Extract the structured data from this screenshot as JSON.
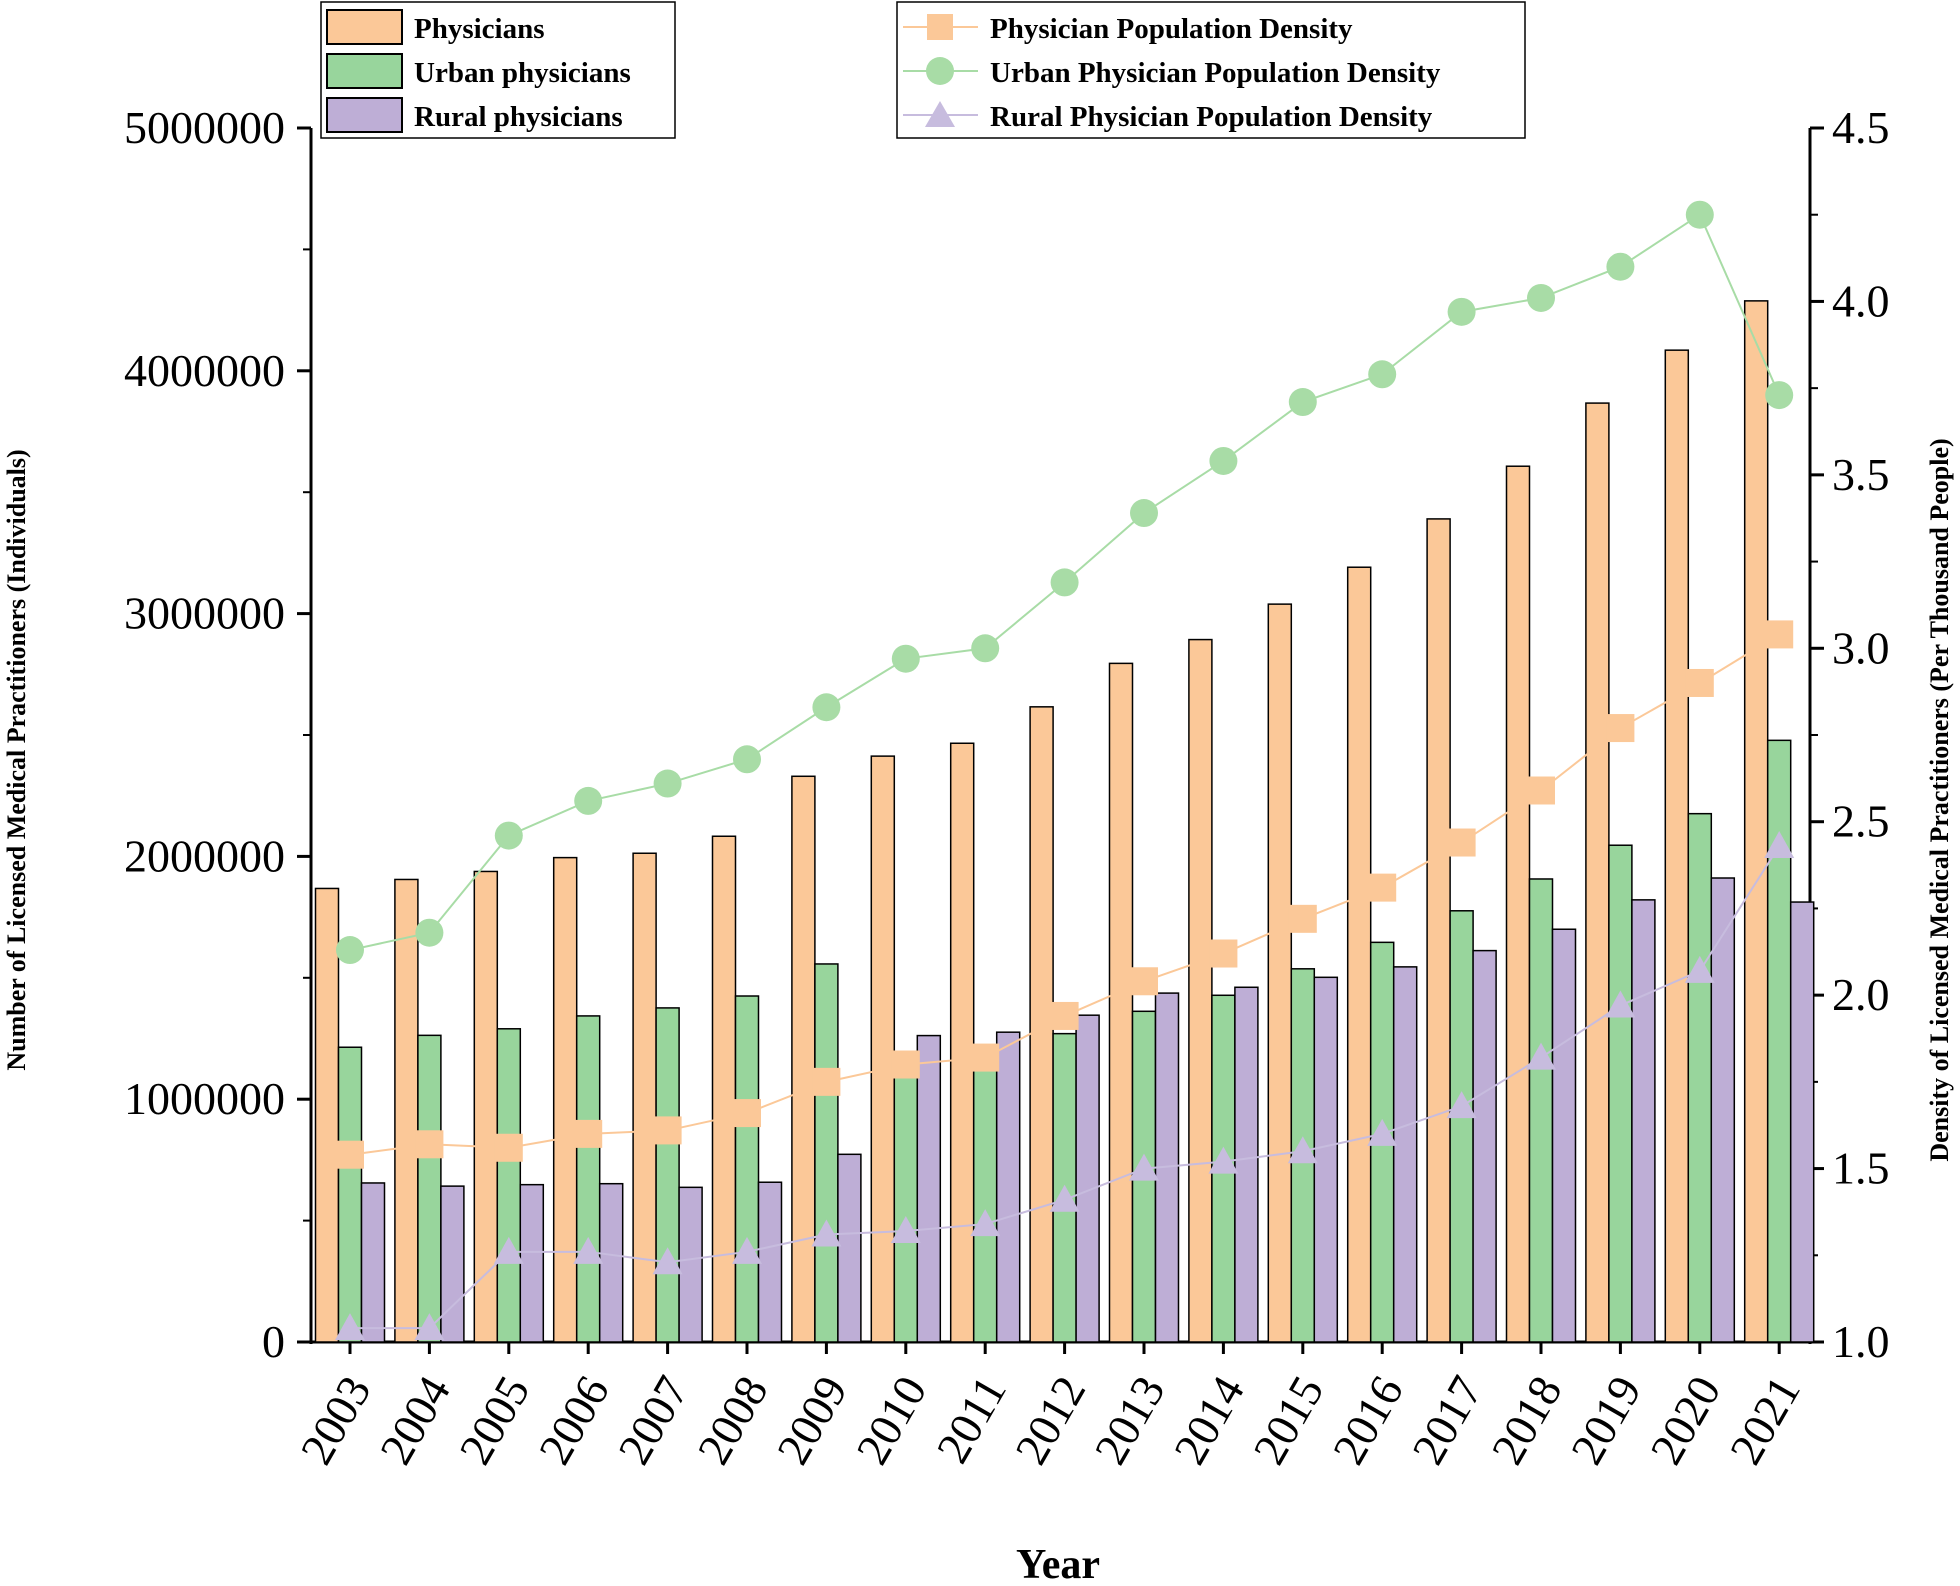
{
  "chart_data": {
    "type": "bar",
    "title": "",
    "categories": [
      "2003",
      "2004",
      "2005",
      "2006",
      "2007",
      "2008",
      "2009",
      "2010",
      "2011",
      "2012",
      "2013",
      "2014",
      "2015",
      "2016",
      "2017",
      "2018",
      "2019",
      "2020",
      "2021"
    ],
    "xlabel": "Year",
    "ylabel": "Number of Licensed Medical Practitioners (Individuals)",
    "y2label": "Density of Licensed Medical Practitioners (Per Thousand People)",
    "ylim": [
      0,
      5000000
    ],
    "y2lim": [
      1.0,
      4.5
    ],
    "yticks": [
      "0",
      "1000000",
      "2000000",
      "3000000",
      "4000000",
      "5000000"
    ],
    "y2ticks": [
      "1.0",
      "1.5",
      "2.0",
      "2.5",
      "3.0",
      "3.5",
      "4.0",
      "4.5"
    ],
    "y2tick_values": [
      1.0,
      1.5,
      2.0,
      2.5,
      3.0,
      3.5,
      4.0,
      4.5
    ],
    "series": [
      {
        "name": "Physicians",
        "kind": "bar",
        "axis": "left",
        "color": "#FBC898",
        "values": [
          1868000,
          1905000,
          1938000,
          1995000,
          2013000,
          2083000,
          2330000,
          2413000,
          2466000,
          2616000,
          2795000,
          2893000,
          3039000,
          3191000,
          3390000,
          3607000,
          3867000,
          4085000,
          4288000
        ]
      },
      {
        "name": "Urban physicians",
        "kind": "bar",
        "axis": "left",
        "color": "#98D59C",
        "values": [
          1214000,
          1263000,
          1290000,
          1343000,
          1376000,
          1425000,
          1557000,
          1140000,
          1150000,
          1270000,
          1362000,
          1428000,
          1537000,
          1646000,
          1776000,
          1907000,
          2046000,
          2176000,
          2478000
        ]
      },
      {
        "name": "Rural physicians",
        "kind": "bar",
        "axis": "left",
        "color": "#BEAED6",
        "values": [
          655000,
          642000,
          648000,
          652000,
          637000,
          658000,
          773000,
          1262000,
          1276000,
          1346000,
          1437000,
          1461000,
          1502000,
          1545000,
          1612000,
          1700000,
          1821000,
          1911000,
          1812000
        ]
      },
      {
        "name": "Physician Population Density",
        "kind": "line",
        "axis": "right",
        "marker": "square",
        "color": "#FBC898",
        "values": [
          1.54,
          1.57,
          1.56,
          1.6,
          1.61,
          1.66,
          1.75,
          1.8,
          1.82,
          1.94,
          2.04,
          2.12,
          2.22,
          2.31,
          2.44,
          2.59,
          2.77,
          2.9,
          3.04
        ]
      },
      {
        "name": "Urban Physician Population Density",
        "kind": "line",
        "axis": "right",
        "marker": "circle",
        "color": "#A8DCA6",
        "values": [
          2.13,
          2.18,
          2.46,
          2.56,
          2.61,
          2.68,
          2.83,
          2.97,
          3.0,
          3.19,
          3.39,
          3.54,
          3.71,
          3.79,
          3.97,
          4.01,
          4.1,
          4.25,
          3.73
        ]
      },
      {
        "name": "Rural Physician Population Density",
        "kind": "line",
        "axis": "right",
        "marker": "triangle",
        "color": "#C7BCDE",
        "values": [
          1.04,
          1.04,
          1.26,
          1.26,
          1.23,
          1.26,
          1.31,
          1.32,
          1.34,
          1.41,
          1.5,
          1.52,
          1.55,
          1.6,
          1.68,
          1.82,
          1.97,
          2.07,
          2.43
        ]
      }
    ],
    "legend_bars_placement": "top-left",
    "legend_lines_placement": "top-center"
  }
}
